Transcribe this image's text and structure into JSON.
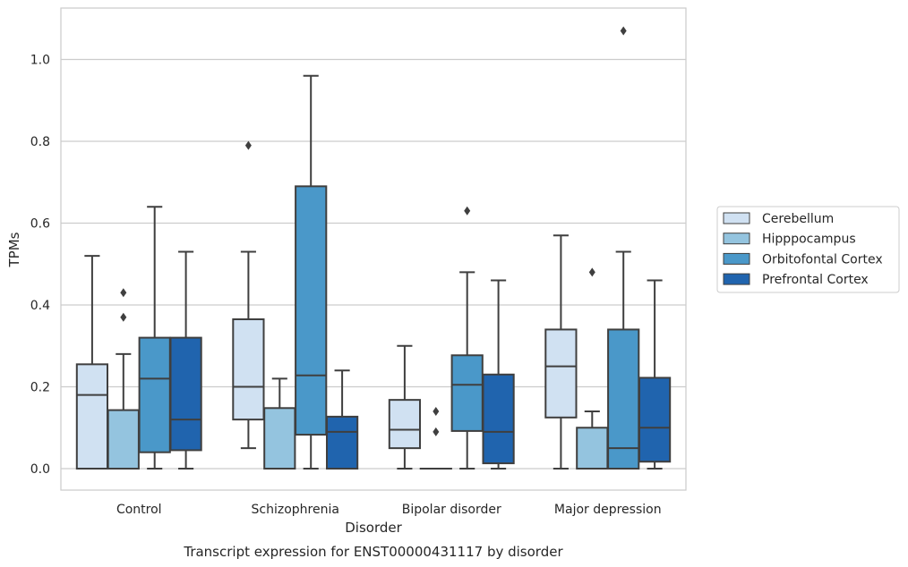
{
  "chart_data": {
    "type": "box",
    "caption": "Transcript expression for ENST00000431117 by disorder",
    "xlabel": "Disorder",
    "ylabel": "TPMs",
    "ylim": [
      -0.05,
      1.13
    ],
    "yticks": [
      0.0,
      0.2,
      0.4,
      0.6,
      0.8,
      1.0
    ],
    "ytick_labels": [
      "0.0",
      "0.2",
      "0.4",
      "0.6",
      "0.8",
      "1.0"
    ],
    "grid": "horizontal",
    "legend_position": "right",
    "categories": [
      "Control",
      "Schizophrenia",
      "Bipolar disorder",
      "Major depression"
    ],
    "series": [
      {
        "name": "Cerebellum",
        "color": "#d0e1f2",
        "boxes": [
          {
            "whislo": 0.0,
            "q1": 0.0,
            "med": 0.18,
            "q3": 0.255,
            "whishi": 0.52,
            "fliers": []
          },
          {
            "whislo": 0.05,
            "q1": 0.12,
            "med": 0.2,
            "q3": 0.365,
            "whishi": 0.53,
            "fliers": [
              0.79
            ]
          },
          {
            "whislo": 0.0,
            "q1": 0.05,
            "med": 0.095,
            "q3": 0.168,
            "whishi": 0.3,
            "fliers": []
          },
          {
            "whislo": 0.0,
            "q1": 0.125,
            "med": 0.25,
            "q3": 0.34,
            "whishi": 0.57,
            "fliers": []
          }
        ]
      },
      {
        "name": "Hipppocampus",
        "color": "#94c4df",
        "boxes": [
          {
            "whislo": 0.0,
            "q1": 0.0,
            "med": 0.0,
            "q3": 0.143,
            "whishi": 0.28,
            "fliers": [
              0.37,
              0.43
            ]
          },
          {
            "whislo": 0.0,
            "q1": 0.0,
            "med": 0.0,
            "q3": 0.148,
            "whishi": 0.22,
            "fliers": []
          },
          {
            "whislo": 0.0,
            "q1": 0.0,
            "med": 0.0,
            "q3": 0.0,
            "whishi": 0.0,
            "fliers": [
              0.09,
              0.14
            ]
          },
          {
            "whislo": 0.0,
            "q1": 0.0,
            "med": 0.0,
            "q3": 0.1,
            "whishi": 0.14,
            "fliers": [
              0.48
            ]
          }
        ]
      },
      {
        "name": "Orbitofontal Cortex",
        "color": "#4a98c9",
        "boxes": [
          {
            "whislo": 0.0,
            "q1": 0.04,
            "med": 0.22,
            "q3": 0.32,
            "whishi": 0.64,
            "fliers": []
          },
          {
            "whislo": 0.0,
            "q1": 0.083,
            "med": 0.228,
            "q3": 0.69,
            "whishi": 0.96,
            "fliers": []
          },
          {
            "whislo": 0.0,
            "q1": 0.092,
            "med": 0.205,
            "q3": 0.277,
            "whishi": 0.48,
            "fliers": [
              0.63
            ]
          },
          {
            "whislo": 0.0,
            "q1": 0.0,
            "med": 0.05,
            "q3": 0.34,
            "whishi": 0.53,
            "fliers": [
              1.07
            ]
          }
        ]
      },
      {
        "name": "Prefrontal Cortex",
        "color": "#2064ae",
        "boxes": [
          {
            "whislo": 0.0,
            "q1": 0.045,
            "med": 0.12,
            "q3": 0.32,
            "whishi": 0.53,
            "fliers": []
          },
          {
            "whislo": 0.0,
            "q1": 0.0,
            "med": 0.09,
            "q3": 0.127,
            "whishi": 0.24,
            "fliers": []
          },
          {
            "whislo": 0.0,
            "q1": 0.013,
            "med": 0.09,
            "q3": 0.23,
            "whishi": 0.46,
            "fliers": []
          },
          {
            "whislo": 0.0,
            "q1": 0.017,
            "med": 0.1,
            "q3": 0.222,
            "whishi": 0.46,
            "fliers": []
          }
        ]
      }
    ]
  }
}
